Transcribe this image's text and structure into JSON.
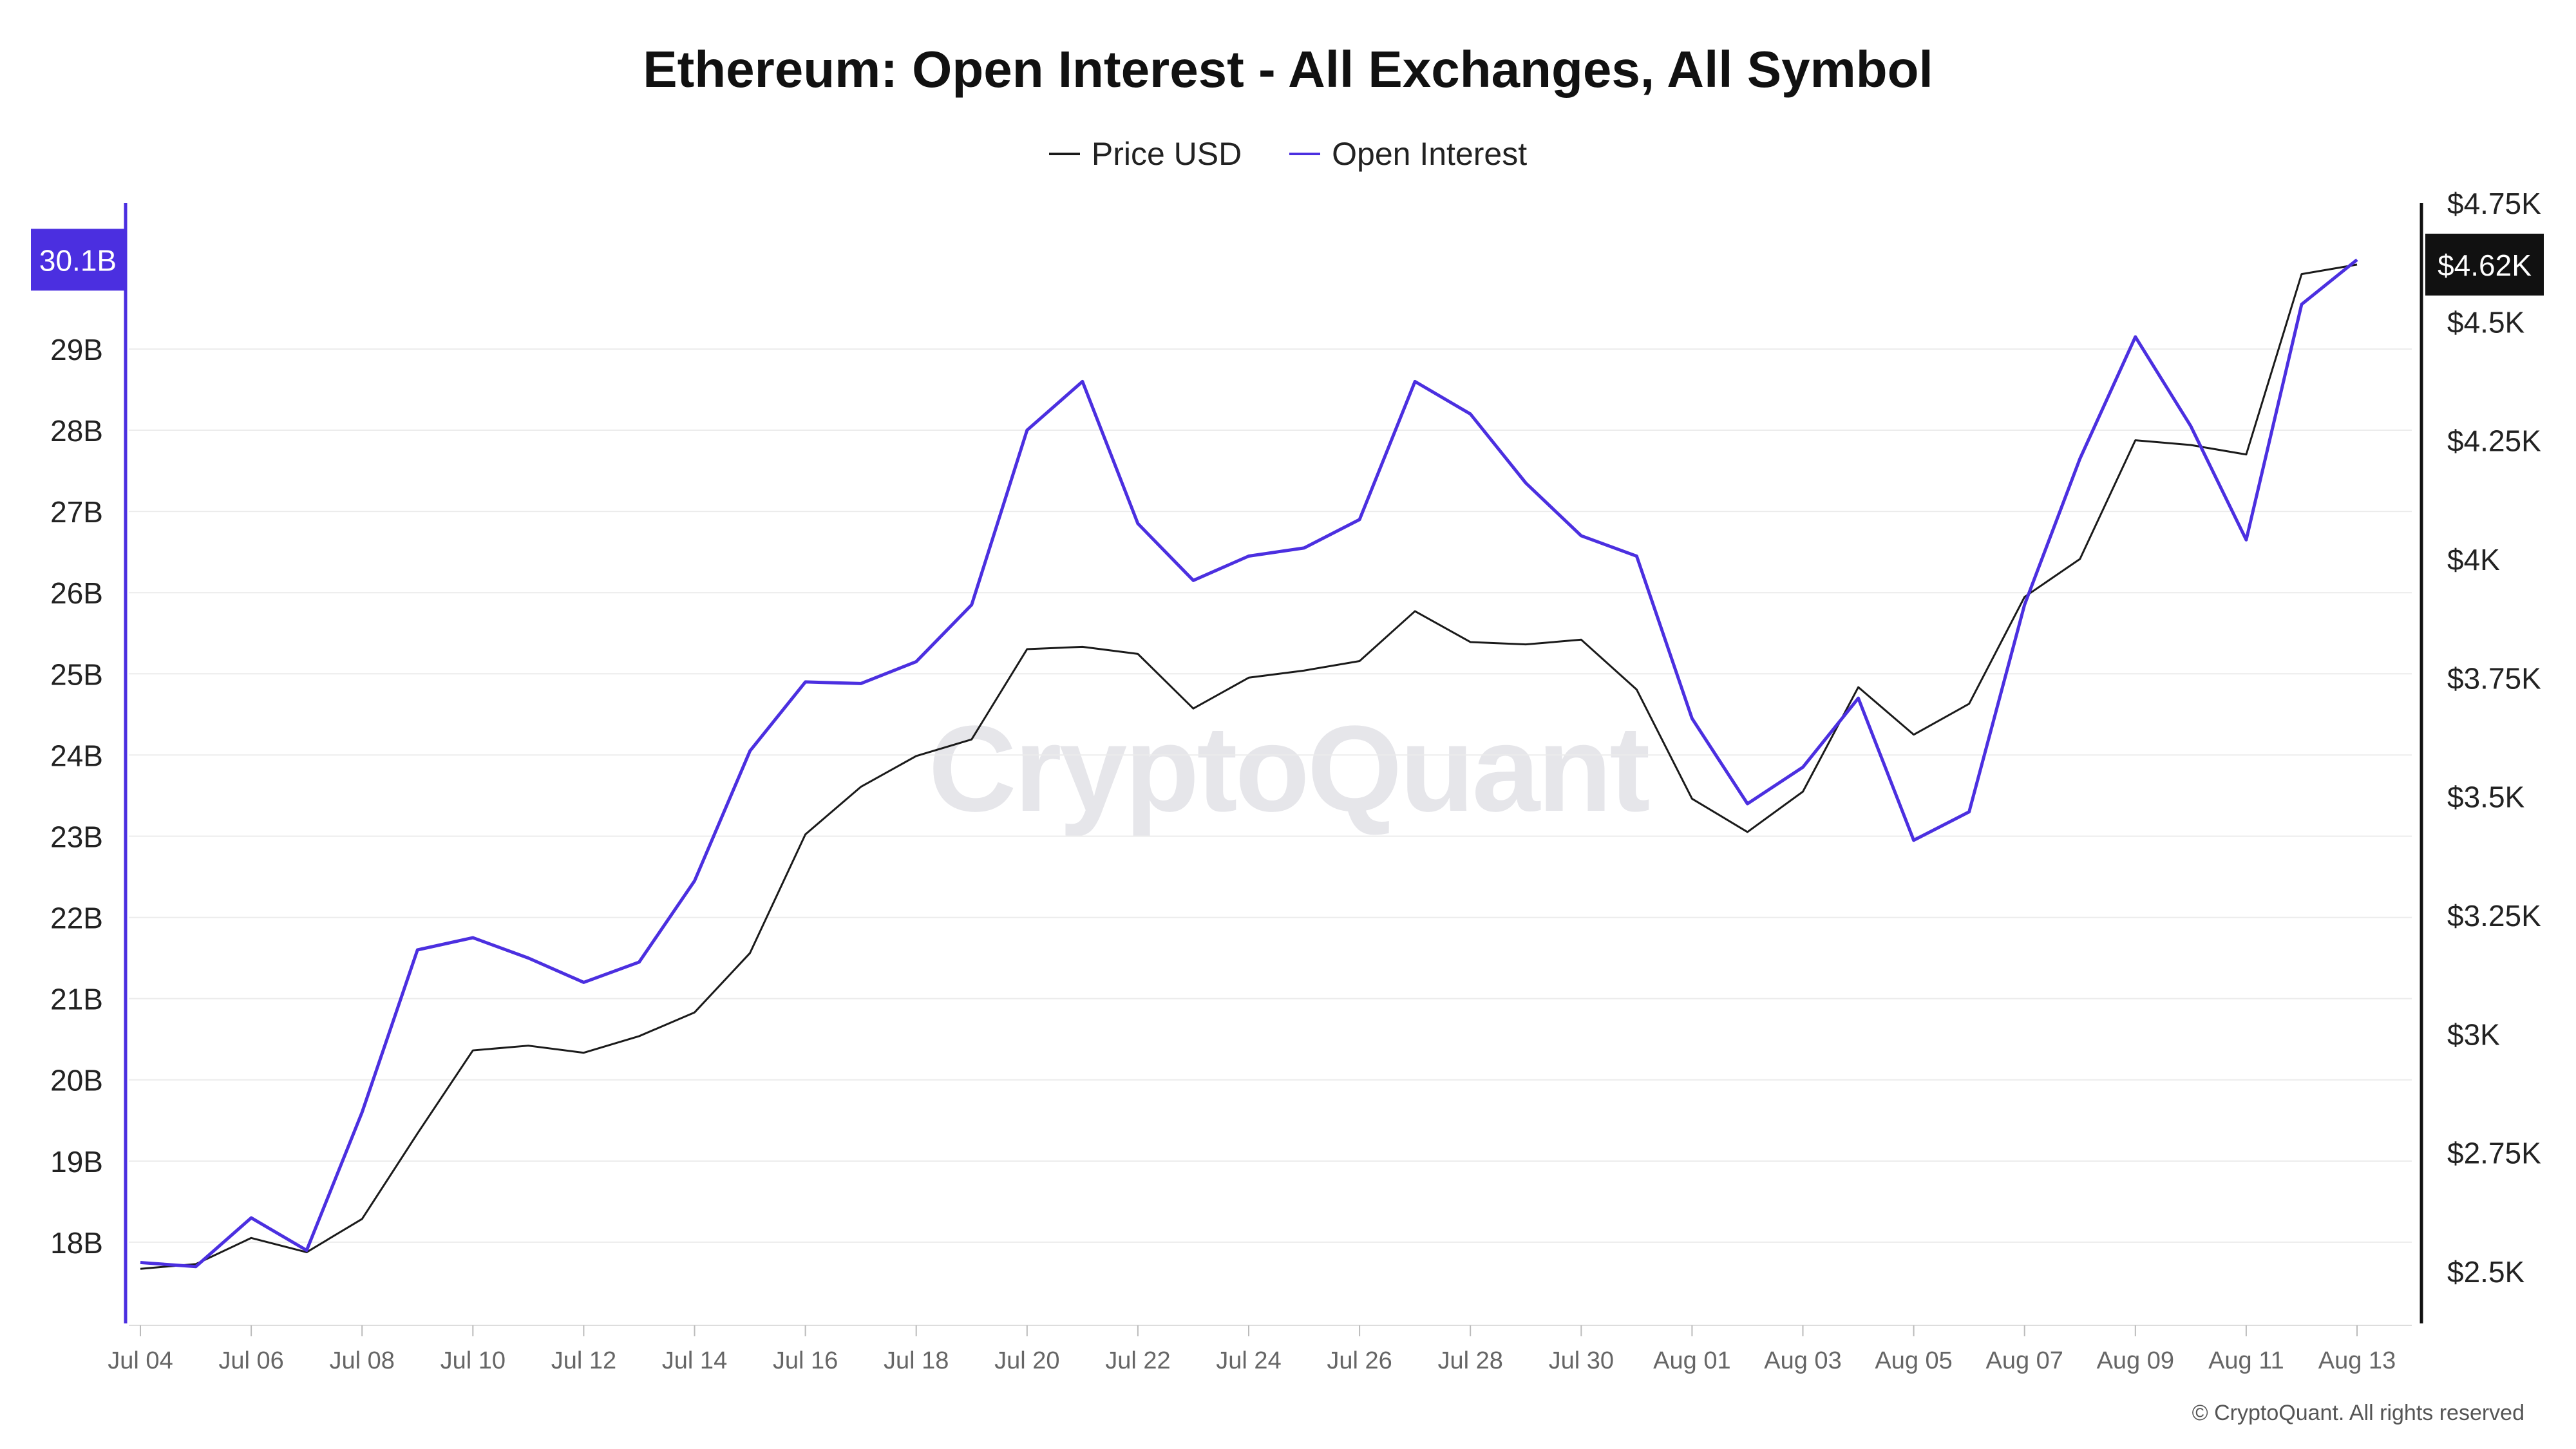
{
  "colors": {
    "price": "#1a1a1a",
    "oi": "#4b2fe0",
    "grid": "#ececec",
    "oi_badge": "#4b2fe0",
    "price_badge": "#111111"
  },
  "watermark": "CryptoQuant",
  "copyright": "© CryptoQuant. All rights reserved",
  "chart_data": {
    "type": "line",
    "title": "Ethereum: Open Interest - All Exchanges, All Symbol",
    "legend": [
      "Price USD",
      "Open Interest"
    ],
    "x": [
      "Jul 04",
      "Jul 05",
      "Jul 06",
      "Jul 07",
      "Jul 08",
      "Jul 09",
      "Jul 10",
      "Jul 11",
      "Jul 12",
      "Jul 13",
      "Jul 14",
      "Jul 15",
      "Jul 16",
      "Jul 17",
      "Jul 18",
      "Jul 19",
      "Jul 20",
      "Jul 21",
      "Jul 22",
      "Jul 23",
      "Jul 24",
      "Jul 25",
      "Jul 26",
      "Jul 27",
      "Jul 28",
      "Jul 29",
      "Jul 30",
      "Jul 31",
      "Aug 01",
      "Aug 02",
      "Aug 03",
      "Aug 04",
      "Aug 05",
      "Aug 06",
      "Aug 07",
      "Aug 08",
      "Aug 09",
      "Aug 10",
      "Aug 11",
      "Aug 12",
      "Aug 13"
    ],
    "x_tick_labels": [
      "Jul 04",
      "Jul 06",
      "Jul 08",
      "Jul 10",
      "Jul 12",
      "Jul 14",
      "Jul 16",
      "Jul 18",
      "Jul 20",
      "Jul 22",
      "Jul 24",
      "Jul 26",
      "Jul 28",
      "Jul 30",
      "Aug 01",
      "Aug 03",
      "Aug 05",
      "Aug 07",
      "Aug 09",
      "Aug 11",
      "Aug 13"
    ],
    "series": [
      {
        "name": "Price USD",
        "axis": "right",
        "values": [
          2505,
          2515,
          2570,
          2540,
          2610,
          2790,
          2965,
          2975,
          2960,
          2995,
          3045,
          3170,
          3420,
          3520,
          3585,
          3620,
          3810,
          3815,
          3800,
          3685,
          3750,
          3765,
          3785,
          3890,
          3825,
          3820,
          3830,
          3725,
          3495,
          3425,
          3510,
          3730,
          3630,
          3695,
          3920,
          4000,
          4250,
          4240,
          4220,
          4600,
          4620
        ]
      },
      {
        "name": "Open Interest",
        "axis": "left",
        "values": [
          17.75,
          17.7,
          18.3,
          17.9,
          19.6,
          21.6,
          21.75,
          21.5,
          21.2,
          21.45,
          22.45,
          24.05,
          24.9,
          24.88,
          25.15,
          25.85,
          28.0,
          28.6,
          26.85,
          26.15,
          26.45,
          26.55,
          26.9,
          28.6,
          28.2,
          27.35,
          26.7,
          26.45,
          24.45,
          23.4,
          23.85,
          24.7,
          22.95,
          23.3,
          25.85,
          27.65,
          29.15,
          28.05,
          26.65,
          29.55,
          30.1
        ]
      }
    ],
    "y_left": {
      "ticks": [
        "18B",
        "19B",
        "20B",
        "21B",
        "22B",
        "23B",
        "24B",
        "25B",
        "26B",
        "27B",
        "28B",
        "29B"
      ],
      "tick_values": [
        18,
        19,
        20,
        21,
        22,
        23,
        24,
        25,
        26,
        27,
        28,
        29
      ],
      "range": [
        17.0,
        30.8
      ]
    },
    "y_right": {
      "ticks": [
        "$2.5K",
        "$2.75K",
        "$3K",
        "$3.25K",
        "$3.5K",
        "$3.75K",
        "$4K",
        "$4.25K",
        "$4.5K",
        "$4.75K"
      ],
      "tick_values": [
        2500,
        2750,
        3000,
        3250,
        3500,
        3750,
        4000,
        4250,
        4500,
        4750
      ],
      "range": [
        2390,
        4750
      ]
    },
    "last_value_labels": {
      "open_interest": "30.1B",
      "price": "$4.62K"
    },
    "grid": true,
    "legend_position": "top-center"
  }
}
